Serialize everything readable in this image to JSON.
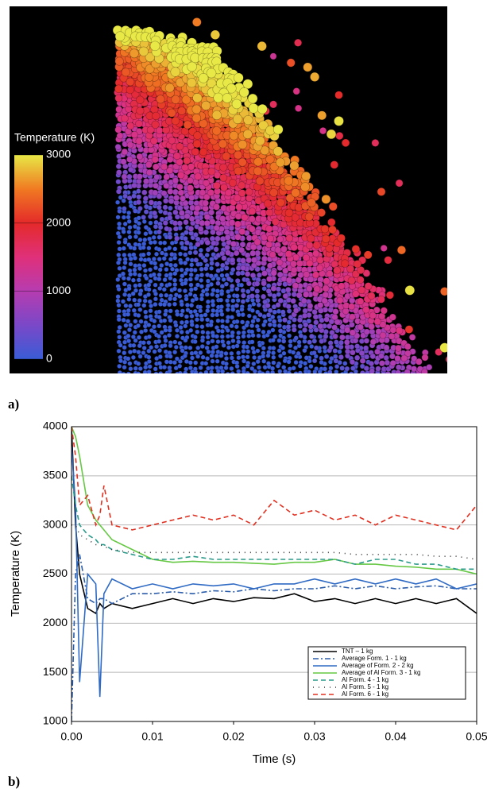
{
  "panel_a": {
    "label": "a)",
    "colorbar": {
      "title": "Temperature (K)",
      "lim": [
        0,
        3000
      ],
      "ticks": [
        0,
        1000,
        2000,
        3000
      ],
      "colormap": [
        "#3a5cd6",
        "#7a48c8",
        "#b63cb0",
        "#e0307a",
        "#e42a2a",
        "#f07a22",
        "#e8e846"
      ]
    }
  },
  "panel_b": {
    "label": "b)",
    "chart_data": {
      "type": "line",
      "xlabel": "Time (s)",
      "ylabel": "Temperature (K)",
      "x": [
        0,
        0.0005,
        0.001,
        0.002,
        0.003,
        0.0035,
        0.004,
        0.005,
        0.0075,
        0.01,
        0.0125,
        0.015,
        0.0175,
        0.02,
        0.0225,
        0.025,
        0.0275,
        0.03,
        0.0325,
        0.035,
        0.0375,
        0.04,
        0.0425,
        0.045,
        0.0475,
        0.05
      ],
      "xlim": [
        0,
        0.05
      ],
      "xticks": [
        {
          "value": 0,
          "label": "0.00"
        },
        0.01,
        0.02,
        0.03,
        0.04,
        0.05
      ],
      "ylim": [
        1000,
        4000
      ],
      "yticks": [
        1000,
        1500,
        2000,
        2500,
        3000,
        3500,
        4000
      ],
      "grid": true,
      "legend": "lower-right",
      "series": [
        {
          "name": "TNT – 1 kg",
          "color": "#000000",
          "style": "solid",
          "values": [
            4000,
            3000,
            2500,
            2150,
            2100,
            2200,
            2150,
            2200,
            2150,
            2200,
            2250,
            2200,
            2250,
            2220,
            2260,
            2250,
            2300,
            2220,
            2250,
            2200,
            2250,
            2200,
            2250,
            2200,
            2250,
            2100
          ]
        },
        {
          "name": "Average Form. 1 - 1 kg",
          "color": "#2a5caa",
          "style": "dashdot",
          "values": [
            1000,
            2500,
            2700,
            2250,
            2200,
            2250,
            2250,
            2200,
            2300,
            2300,
            2320,
            2300,
            2330,
            2320,
            2350,
            2330,
            2350,
            2350,
            2380,
            2350,
            2380,
            2350,
            2370,
            2380,
            2350,
            2350
          ]
        },
        {
          "name": "Average of Form. 2 - 2 kg",
          "color": "#2f6ac4",
          "style": "solid",
          "values": [
            3800,
            3200,
            1400,
            2500,
            2400,
            1250,
            2300,
            2450,
            2350,
            2400,
            2350,
            2400,
            2380,
            2400,
            2350,
            2400,
            2400,
            2450,
            2400,
            2450,
            2400,
            2450,
            2400,
            2450,
            2350,
            2400
          ]
        },
        {
          "name": "Average of Al Form. 3 - 1 kg",
          "color": "#66c844",
          "style": "solid",
          "values": [
            4000,
            3900,
            3700,
            3200,
            3050,
            3000,
            2950,
            2850,
            2750,
            2650,
            2620,
            2630,
            2620,
            2620,
            2610,
            2600,
            2620,
            2620,
            2650,
            2600,
            2600,
            2580,
            2570,
            2550,
            2550,
            2500
          ]
        },
        {
          "name": "Al Form. 4 - 1 kg",
          "color": "#2a9a8a",
          "style": "dashed",
          "values": [
            3500,
            3200,
            3000,
            2900,
            2850,
            2800,
            2800,
            2750,
            2700,
            2650,
            2650,
            2680,
            2650,
            2650,
            2650,
            2650,
            2650,
            2650,
            2650,
            2600,
            2650,
            2650,
            2600,
            2600,
            2550,
            2550
          ]
        },
        {
          "name": "Al Form. 5 - 1 kg",
          "color": "#333333",
          "style": "dotted",
          "values": [
            3000,
            3000,
            2900,
            2850,
            2800,
            2800,
            2780,
            2750,
            2720,
            2720,
            2720,
            2720,
            2720,
            2720,
            2720,
            2720,
            2720,
            2720,
            2720,
            2700,
            2700,
            2700,
            2700,
            2680,
            2680,
            2650
          ]
        },
        {
          "name": "Al Form. 6 - 1 kg",
          "color": "#e03020",
          "style": "dashed",
          "values": [
            4000,
            3700,
            3200,
            3300,
            3000,
            3100,
            3400,
            3000,
            2950,
            3000,
            3050,
            3100,
            3050,
            3100,
            3000,
            3250,
            3100,
            3150,
            3050,
            3100,
            3000,
            3100,
            3050,
            3000,
            2950,
            3200
          ]
        }
      ]
    }
  }
}
